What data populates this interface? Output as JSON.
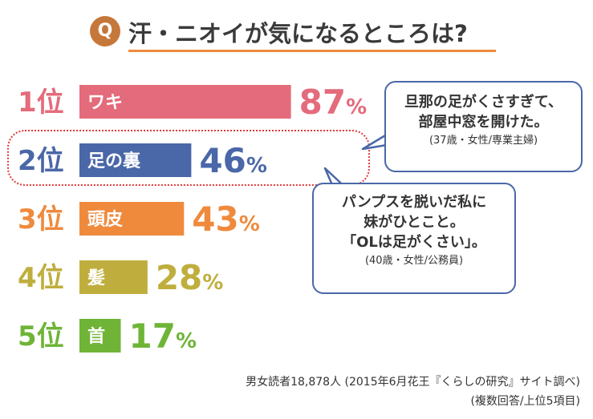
{
  "title": {
    "q": "Q",
    "text": "汗・ニオイが気になるところは?"
  },
  "chart_data": {
    "type": "bar",
    "title": "汗・ニオイが気になるところは?",
    "unit": "%",
    "categories": [
      "ワキ",
      "足の裏",
      "頭皮",
      "髪",
      "首"
    ],
    "ranks": [
      "1位",
      "2位",
      "3位",
      "4位",
      "5位"
    ],
    "values": [
      87,
      46,
      43,
      28,
      17
    ],
    "colors": [
      "#e46b7b",
      "#4a67a8",
      "#ef8a3d",
      "#bfae3d",
      "#6fb437"
    ],
    "highlight_category": "足の裏"
  },
  "bubble1": {
    "line1": "旦那の足がくさすぎて、",
    "line2": "部屋中窓を開けた。",
    "source": "(37歳・女性/専業主婦)"
  },
  "bubble2": {
    "line1": "パンプスを脱いだ私に",
    "line2": "妹がひとこと。",
    "line3": "「OLは足がくさい」。",
    "source": "(40歳・女性/公務員)"
  },
  "footer": {
    "line1": "男女読者18,878人 (2015年6月花王『くらしの研究』サイト調べ)",
    "line2": "(複数回答/上位5項目)"
  }
}
